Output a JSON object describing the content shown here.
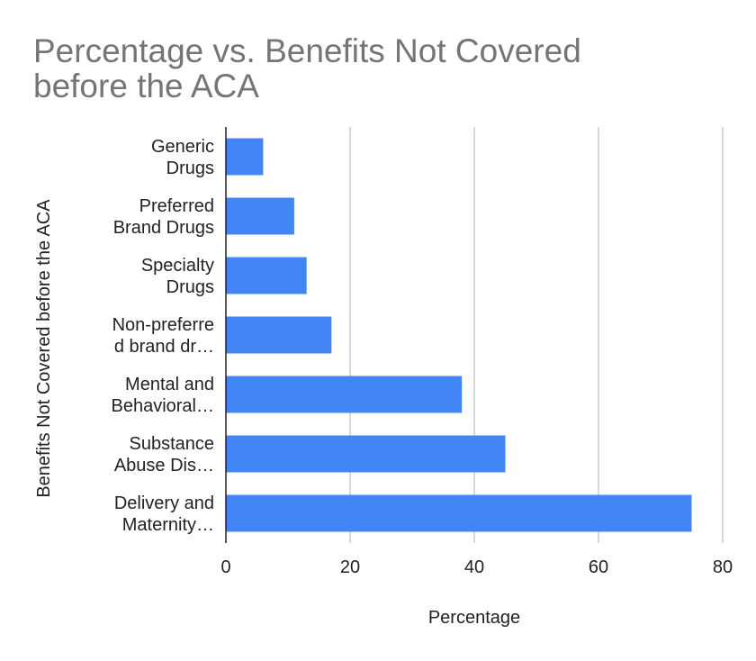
{
  "chart_data": {
    "type": "bar",
    "orientation": "horizontal",
    "title": "Percentage vs. Benefits Not Covered before the ACA",
    "title_lines": [
      "Percentage vs. Benefits Not Covered",
      "before the ACA"
    ],
    "xlabel": "Percentage",
    "ylabel": "Benefits Not Covered before the ACA",
    "categories": [
      "Generic Drugs",
      "Preferred Brand Drugs",
      "Specialty Drugs",
      "Non-preferred brand drugs",
      "Mental and Behavioral Health",
      "Substance Abuse Disorder",
      "Delivery and Maternity Care"
    ],
    "category_display_lines": [
      [
        "Generic",
        "Drugs"
      ],
      [
        "Preferred",
        "Brand Drugs"
      ],
      [
        "Specialty",
        "Drugs"
      ],
      [
        "Non-preferre",
        "d brand dr…"
      ],
      [
        "Mental and",
        "Behavioral…"
      ],
      [
        "Substance",
        "Abuse Dis…"
      ],
      [
        "Delivery and",
        "Maternity…"
      ]
    ],
    "values": [
      6,
      11,
      13,
      17,
      38,
      45,
      75
    ],
    "xlim": [
      0,
      80
    ],
    "xticks": [
      0,
      20,
      40,
      60,
      80
    ],
    "grid": true,
    "bar_color": "#4285f4"
  }
}
